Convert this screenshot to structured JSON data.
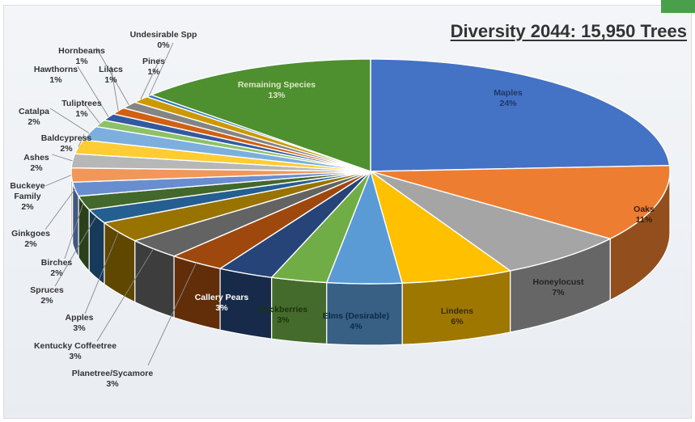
{
  "chart_data": {
    "type": "pie",
    "title": "Diversity 2044: 15,950 Trees",
    "slices": [
      {
        "label": "Maples",
        "percent": 24,
        "value_text": "24%",
        "color": "#4472c4",
        "label_color": "#1f3864"
      },
      {
        "label": "Oaks",
        "percent": 11,
        "value_text": "11%",
        "color": "#ed7d31",
        "label_color": "#3b1c05"
      },
      {
        "label": "Honeylocust",
        "percent": 7,
        "value_text": "7%",
        "color": "#a5a5a5",
        "label_color": "#222222"
      },
      {
        "label": "Lindens",
        "percent": 6,
        "value_text": "6%",
        "color": "#ffc000",
        "label_color": "#3a2a00"
      },
      {
        "label": "Elms (Desirable)",
        "percent": 4,
        "value_text": "4%",
        "color": "#5b9bd5",
        "label_color": "#0d2a47"
      },
      {
        "label": "Hackberries",
        "percent": 3,
        "value_text": "3%",
        "color": "#70ad47",
        "label_color": "#1a330c"
      },
      {
        "label": "Callery Pears",
        "percent": 3,
        "value_text": "3%",
        "color": "#264478",
        "label_color": "#ffffff"
      },
      {
        "label": "Planetree/Sycamore",
        "percent": 3,
        "value_text": "3%",
        "color": "#9e480e",
        "label_color": "#333333"
      },
      {
        "label": "Kentucky Coffeetree",
        "percent": 3,
        "value_text": "3%",
        "color": "#636363",
        "label_color": "#333333"
      },
      {
        "label": "Apples",
        "percent": 3,
        "value_text": "3%",
        "color": "#997300",
        "label_color": "#333333"
      },
      {
        "label": "Spruces",
        "percent": 2,
        "value_text": "2%",
        "color": "#255e91",
        "label_color": "#333333"
      },
      {
        "label": "Birches",
        "percent": 2,
        "value_text": "2%",
        "color": "#43682b",
        "label_color": "#333333"
      },
      {
        "label": "Ginkgoes",
        "percent": 2,
        "value_text": "2%",
        "color": "#698ed0",
        "label_color": "#333333"
      },
      {
        "label": "Buckeye Family",
        "percent": 2,
        "value_text": "2%",
        "color": "#f1975a",
        "label_color": "#333333"
      },
      {
        "label": "Ashes",
        "percent": 2,
        "value_text": "2%",
        "color": "#b7b7b7",
        "label_color": "#333333"
      },
      {
        "label": "Baldcypress",
        "percent": 2,
        "value_text": "2%",
        "color": "#ffcd33",
        "label_color": "#333333"
      },
      {
        "label": "Catalpa",
        "percent": 2,
        "value_text": "2%",
        "color": "#7cafdd",
        "label_color": "#333333"
      },
      {
        "label": "Tuliptrees",
        "percent": 1,
        "value_text": "1%",
        "color": "#8cc168",
        "label_color": "#333333"
      },
      {
        "label": "Hawthorns",
        "percent": 1,
        "value_text": "1%",
        "color": "#335aa1",
        "label_color": "#333333"
      },
      {
        "label": "Lilacs",
        "percent": 1,
        "value_text": "1%",
        "color": "#d26012",
        "label_color": "#333333"
      },
      {
        "label": "Hornbeams",
        "percent": 1,
        "value_text": "1%",
        "color": "#848484",
        "label_color": "#333333"
      },
      {
        "label": "Pines",
        "percent": 1,
        "value_text": "1%",
        "color": "#cc9a00",
        "label_color": "#333333"
      },
      {
        "label": "Undesirable Spp",
        "percent": 0,
        "value_text": "0%",
        "color": "#2e75b6",
        "label_color": "#333333"
      },
      {
        "label": "Remaining Species",
        "percent": 13,
        "value_text": "13%",
        "color": "#4e8f2f",
        "label_color": "#dfe8c8"
      }
    ]
  },
  "corner_accent_color": "#4aa04a"
}
